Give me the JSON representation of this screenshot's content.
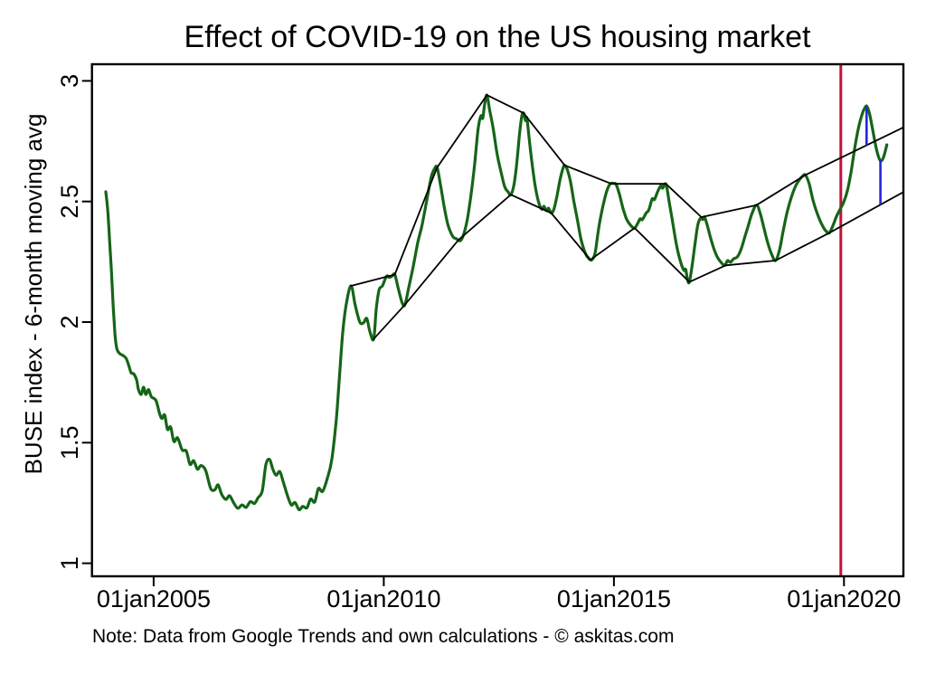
{
  "header": {
    "title": "Effect of COVID-19 on the US housing market"
  },
  "y_axis_title": "BUSE index - 6-month moving avg",
  "note": {
    "text": "Note: Data from Google Trends and own calculations - © askitas.com"
  },
  "chart_data": {
    "type": "line",
    "title": "Effect of COVID-19 on the US housing market",
    "xlabel": "",
    "ylabel": "BUSE index - 6-month moving avg",
    "grid": false,
    "legend_position": "none",
    "xlim": [
      2003.66,
      2021.29
    ],
    "ylim": [
      0.946,
      3.069
    ],
    "xticks": {
      "values": [
        2005,
        2010,
        2015,
        2020
      ],
      "labels": [
        "01jan2005",
        "01jan2010",
        "01jan2015",
        "01jan2020"
      ]
    },
    "yticks": {
      "values": [
        1,
        1.5,
        2,
        2.5,
        3
      ],
      "labels": [
        "1",
        "1.5",
        "2",
        "2.5",
        "3"
      ]
    },
    "colors": {
      "main": "#166517",
      "envelope": "#000000",
      "event_line": "#c4103c",
      "deviation": "#2525db",
      "axis": "#000000"
    },
    "series": [
      {
        "name": "BUSE index 6-month moving avg",
        "kind": "smooth",
        "color_key": "main",
        "width": 3.2,
        "points": [
          [
            2003.96,
            2.54
          ],
          [
            2004.0,
            2.47
          ],
          [
            2004.04,
            2.35
          ],
          [
            2004.08,
            2.22
          ],
          [
            2004.12,
            2.07
          ],
          [
            2004.16,
            1.95
          ],
          [
            2004.2,
            1.89
          ],
          [
            2004.26,
            1.87
          ],
          [
            2004.33,
            1.862
          ],
          [
            2004.4,
            1.85
          ],
          [
            2004.46,
            1.82
          ],
          [
            2004.51,
            1.79
          ],
          [
            2004.57,
            1.785
          ],
          [
            2004.63,
            1.76
          ],
          [
            2004.67,
            1.72
          ],
          [
            2004.73,
            1.7
          ],
          [
            2004.78,
            1.73
          ],
          [
            2004.83,
            1.7
          ],
          [
            2004.89,
            1.72
          ],
          [
            2004.95,
            1.69
          ],
          [
            2005.05,
            1.675
          ],
          [
            2005.13,
            1.62
          ],
          [
            2005.18,
            1.6
          ],
          [
            2005.24,
            1.615
          ],
          [
            2005.3,
            1.555
          ],
          [
            2005.37,
            1.565
          ],
          [
            2005.44,
            1.505
          ],
          [
            2005.52,
            1.52
          ],
          [
            2005.62,
            1.47
          ],
          [
            2005.71,
            1.465
          ],
          [
            2005.79,
            1.41
          ],
          [
            2005.87,
            1.425
          ],
          [
            2005.95,
            1.39
          ],
          [
            2006.03,
            1.405
          ],
          [
            2006.13,
            1.385
          ],
          [
            2006.24,
            1.31
          ],
          [
            2006.33,
            1.305
          ],
          [
            2006.4,
            1.325
          ],
          [
            2006.48,
            1.285
          ],
          [
            2006.57,
            1.265
          ],
          [
            2006.65,
            1.28
          ],
          [
            2006.74,
            1.25
          ],
          [
            2006.83,
            1.228
          ],
          [
            2006.92,
            1.242
          ],
          [
            2007.01,
            1.232
          ],
          [
            2007.1,
            1.256
          ],
          [
            2007.19,
            1.248
          ],
          [
            2007.27,
            1.272
          ],
          [
            2007.36,
            1.3
          ],
          [
            2007.44,
            1.41
          ],
          [
            2007.52,
            1.43
          ],
          [
            2007.59,
            1.39
          ],
          [
            2007.66,
            1.365
          ],
          [
            2007.74,
            1.38
          ],
          [
            2007.82,
            1.335
          ],
          [
            2007.9,
            1.285
          ],
          [
            2007.99,
            1.242
          ],
          [
            2008.07,
            1.252
          ],
          [
            2008.16,
            1.222
          ],
          [
            2008.24,
            1.236
          ],
          [
            2008.33,
            1.23
          ],
          [
            2008.41,
            1.266
          ],
          [
            2008.5,
            1.254
          ],
          [
            2008.58,
            1.31
          ],
          [
            2008.67,
            1.298
          ],
          [
            2008.77,
            1.35
          ],
          [
            2008.87,
            1.43
          ],
          [
            2008.97,
            1.6
          ],
          [
            2009.04,
            1.78
          ],
          [
            2009.11,
            1.96
          ],
          [
            2009.19,
            2.08
          ],
          [
            2009.29,
            2.15
          ],
          [
            2009.38,
            2.07
          ],
          [
            2009.48,
            2.0
          ],
          [
            2009.56,
            1.997
          ],
          [
            2009.63,
            2.015
          ],
          [
            2009.7,
            1.96
          ],
          [
            2009.78,
            1.93
          ],
          [
            2009.84,
            2.06
          ],
          [
            2009.9,
            2.135
          ],
          [
            2009.97,
            2.15
          ],
          [
            2010.06,
            2.19
          ],
          [
            2010.12,
            2.185
          ],
          [
            2010.18,
            2.19
          ],
          [
            2010.24,
            2.197
          ],
          [
            2010.32,
            2.135
          ],
          [
            2010.4,
            2.08
          ],
          [
            2010.46,
            2.072
          ],
          [
            2010.55,
            2.15
          ],
          [
            2010.63,
            2.22
          ],
          [
            2010.74,
            2.33
          ],
          [
            2010.83,
            2.4
          ],
          [
            2010.93,
            2.5
          ],
          [
            2011.03,
            2.6
          ],
          [
            2011.1,
            2.635
          ],
          [
            2011.16,
            2.641
          ],
          [
            2011.24,
            2.56
          ],
          [
            2011.32,
            2.47
          ],
          [
            2011.4,
            2.4
          ],
          [
            2011.5,
            2.355
          ],
          [
            2011.58,
            2.345
          ],
          [
            2011.66,
            2.337
          ],
          [
            2011.73,
            2.36
          ],
          [
            2011.81,
            2.42
          ],
          [
            2011.89,
            2.52
          ],
          [
            2011.97,
            2.645
          ],
          [
            2012.05,
            2.8
          ],
          [
            2012.11,
            2.855
          ],
          [
            2012.15,
            2.845
          ],
          [
            2012.19,
            2.9
          ],
          [
            2012.24,
            2.941
          ],
          [
            2012.3,
            2.88
          ],
          [
            2012.38,
            2.8
          ],
          [
            2012.46,
            2.7
          ],
          [
            2012.55,
            2.62
          ],
          [
            2012.63,
            2.56
          ],
          [
            2012.7,
            2.54
          ],
          [
            2012.76,
            2.528
          ],
          [
            2012.83,
            2.57
          ],
          [
            2012.89,
            2.66
          ],
          [
            2012.95,
            2.78
          ],
          [
            2013.0,
            2.855
          ],
          [
            2013.04,
            2.866
          ],
          [
            2013.08,
            2.835
          ],
          [
            2013.11,
            2.845
          ],
          [
            2013.16,
            2.76
          ],
          [
            2013.22,
            2.66
          ],
          [
            2013.29,
            2.565
          ],
          [
            2013.36,
            2.5
          ],
          [
            2013.43,
            2.468
          ],
          [
            2013.48,
            2.48
          ],
          [
            2013.53,
            2.462
          ],
          [
            2013.58,
            2.472
          ],
          [
            2013.64,
            2.452
          ],
          [
            2013.7,
            2.47
          ],
          [
            2013.76,
            2.52
          ],
          [
            2013.83,
            2.59
          ],
          [
            2013.89,
            2.635
          ],
          [
            2013.93,
            2.65
          ],
          [
            2013.99,
            2.63
          ],
          [
            2014.06,
            2.58
          ],
          [
            2014.13,
            2.5
          ],
          [
            2014.21,
            2.42
          ],
          [
            2014.29,
            2.34
          ],
          [
            2014.38,
            2.285
          ],
          [
            2014.46,
            2.262
          ],
          [
            2014.52,
            2.258
          ],
          [
            2014.59,
            2.285
          ],
          [
            2014.67,
            2.39
          ],
          [
            2014.75,
            2.47
          ],
          [
            2014.84,
            2.54
          ],
          [
            2014.92,
            2.573
          ],
          [
            2015.0,
            2.575
          ],
          [
            2015.05,
            2.57
          ],
          [
            2015.12,
            2.53
          ],
          [
            2015.2,
            2.47
          ],
          [
            2015.28,
            2.425
          ],
          [
            2015.37,
            2.4
          ],
          [
            2015.45,
            2.39
          ],
          [
            2015.52,
            2.41
          ],
          [
            2015.57,
            2.428
          ],
          [
            2015.62,
            2.425
          ],
          [
            2015.7,
            2.452
          ],
          [
            2015.76,
            2.465
          ],
          [
            2015.83,
            2.51
          ],
          [
            2015.88,
            2.508
          ],
          [
            2015.95,
            2.54
          ],
          [
            2016.02,
            2.565
          ],
          [
            2016.06,
            2.555
          ],
          [
            2016.13,
            2.572
          ],
          [
            2016.2,
            2.5
          ],
          [
            2016.28,
            2.41
          ],
          [
            2016.36,
            2.32
          ],
          [
            2016.44,
            2.255
          ],
          [
            2016.52,
            2.215
          ],
          [
            2016.56,
            2.218
          ],
          [
            2016.6,
            2.175
          ],
          [
            2016.64,
            2.166
          ],
          [
            2016.7,
            2.235
          ],
          [
            2016.76,
            2.32
          ],
          [
            2016.82,
            2.4
          ],
          [
            2016.88,
            2.43
          ],
          [
            2016.93,
            2.425
          ],
          [
            2016.97,
            2.435
          ],
          [
            2017.03,
            2.4
          ],
          [
            2017.1,
            2.35
          ],
          [
            2017.18,
            2.3
          ],
          [
            2017.26,
            2.265
          ],
          [
            2017.34,
            2.245
          ],
          [
            2017.41,
            2.235
          ],
          [
            2017.47,
            2.255
          ],
          [
            2017.53,
            2.248
          ],
          [
            2017.6,
            2.262
          ],
          [
            2017.68,
            2.27
          ],
          [
            2017.76,
            2.3
          ],
          [
            2017.84,
            2.35
          ],
          [
            2017.92,
            2.4
          ],
          [
            2018.0,
            2.45
          ],
          [
            2018.1,
            2.485
          ],
          [
            2018.18,
            2.45
          ],
          [
            2018.26,
            2.39
          ],
          [
            2018.34,
            2.33
          ],
          [
            2018.42,
            2.285
          ],
          [
            2018.51,
            2.255
          ],
          [
            2018.6,
            2.3
          ],
          [
            2018.68,
            2.38
          ],
          [
            2018.77,
            2.46
          ],
          [
            2018.86,
            2.52
          ],
          [
            2018.95,
            2.565
          ],
          [
            2019.03,
            2.59
          ],
          [
            2019.1,
            2.605
          ],
          [
            2019.16,
            2.61
          ],
          [
            2019.24,
            2.575
          ],
          [
            2019.32,
            2.51
          ],
          [
            2019.4,
            2.46
          ],
          [
            2019.48,
            2.42
          ],
          [
            2019.56,
            2.39
          ],
          [
            2019.62,
            2.375
          ],
          [
            2019.68,
            2.37
          ],
          [
            2019.76,
            2.4
          ],
          [
            2019.84,
            2.44
          ],
          [
            2019.92,
            2.47
          ],
          [
            2020.0,
            2.5
          ],
          [
            2020.08,
            2.55
          ],
          [
            2020.16,
            2.63
          ],
          [
            2020.24,
            2.73
          ],
          [
            2020.32,
            2.81
          ],
          [
            2020.4,
            2.865
          ],
          [
            2020.46,
            2.89
          ],
          [
            2020.5,
            2.894
          ],
          [
            2020.56,
            2.86
          ],
          [
            2020.63,
            2.79
          ],
          [
            2020.7,
            2.72
          ],
          [
            2020.77,
            2.675
          ],
          [
            2020.82,
            2.67
          ],
          [
            2020.87,
            2.69
          ],
          [
            2020.93,
            2.735
          ]
        ]
      },
      {
        "name": "upper envelope of seasonal peaks",
        "kind": "polyline",
        "color_key": "envelope",
        "width": 1.8,
        "points": [
          [
            2009.29,
            2.15
          ],
          [
            2010.24,
            2.197
          ],
          [
            2011.16,
            2.641
          ],
          [
            2012.24,
            2.941
          ],
          [
            2013.04,
            2.866
          ],
          [
            2013.93,
            2.65
          ],
          [
            2014.95,
            2.573
          ],
          [
            2016.13,
            2.573
          ],
          [
            2016.9,
            2.435
          ],
          [
            2018.1,
            2.485
          ],
          [
            2019.16,
            2.61
          ],
          [
            2021.28,
            2.806
          ]
        ]
      },
      {
        "name": "lower envelope of seasonal troughs",
        "kind": "polyline",
        "color_key": "envelope",
        "width": 1.8,
        "points": [
          [
            2009.78,
            1.93
          ],
          [
            2010.46,
            2.072
          ],
          [
            2011.62,
            2.34
          ],
          [
            2012.76,
            2.528
          ],
          [
            2013.64,
            2.452
          ],
          [
            2014.49,
            2.258
          ],
          [
            2015.45,
            2.39
          ],
          [
            2016.64,
            2.166
          ],
          [
            2017.43,
            2.235
          ],
          [
            2018.51,
            2.255
          ],
          [
            2019.68,
            2.37
          ],
          [
            2021.28,
            2.538
          ]
        ]
      }
    ],
    "event_line": {
      "x": 2019.93,
      "color_key": "event_line",
      "width": 3
    },
    "deviation_segments": [
      {
        "x": 2020.49,
        "from": 2.894,
        "to": 2.733
      },
      {
        "x": 2020.79,
        "from": 2.672,
        "to": 2.487
      }
    ]
  }
}
